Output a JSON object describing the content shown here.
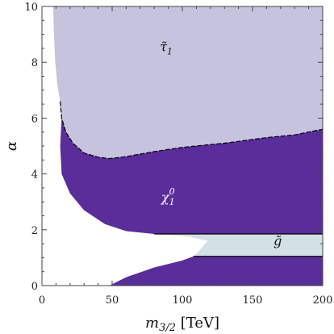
{
  "chart_data": {
    "type": "area",
    "xlabel": "m",
    "xlabel_sub": "3/2",
    "xlabel_unit": " [TeV]",
    "ylabel": "α",
    "xlim": [
      0,
      200
    ],
    "ylim": [
      0,
      10
    ],
    "x_ticks": [
      0,
      50,
      100,
      150,
      200
    ],
    "y_ticks": [
      0,
      2,
      4,
      6,
      8,
      10
    ],
    "colors": {
      "stau": "#c5c3de",
      "neutralino": "#5a2d9b",
      "gluino": "#d3e0e6",
      "excluded": "#ffffff",
      "boundary": "#000000"
    },
    "regions": [
      {
        "id": "stau",
        "label_main": "τ̃",
        "label_sub": "1",
        "label_at": [
          84,
          8.4
        ],
        "boundary": [
          [
            8,
            10
          ],
          [
            8.5,
            9
          ],
          [
            9.5,
            8
          ],
          [
            11,
            7.2
          ],
          [
            13,
            6.6
          ],
          [
            14,
            6.0
          ],
          [
            17,
            5.5
          ],
          [
            22,
            5.1
          ],
          [
            30,
            4.75
          ],
          [
            40,
            4.6
          ],
          [
            48,
            4.55
          ],
          [
            60,
            4.62
          ],
          [
            80,
            4.8
          ],
          [
            100,
            4.95
          ],
          [
            130,
            5.1
          ],
          [
            160,
            5.3
          ],
          [
            180,
            5.4
          ],
          [
            200,
            5.6
          ]
        ]
      },
      {
        "id": "neutralino",
        "label_main": "χ",
        "label_sub": "1",
        "label_sup": "0",
        "label_at": [
          85,
          3.0
        ],
        "boundary": [
          [
            14,
            6.0
          ],
          [
            13,
            5.0
          ],
          [
            14,
            4.0
          ],
          [
            20,
            3.3
          ],
          [
            30,
            2.7
          ],
          [
            45,
            2.2
          ],
          [
            60,
            1.95
          ],
          [
            80,
            1.85
          ],
          [
            200,
            1.85
          ]
        ]
      },
      {
        "id": "gluino",
        "label_main": "g̃",
        "label_at": [
          165,
          1.45
        ],
        "boundary": [
          [
            80,
            1.85
          ],
          [
            105,
            1.75
          ],
          [
            118,
            1.6
          ],
          [
            112,
            1.25
          ],
          [
            108,
            1.05
          ],
          [
            200,
            1.05
          ]
        ]
      },
      {
        "id": "neutralino_low",
        "boundary": [
          [
            48,
            0
          ],
          [
            60,
            0.3
          ],
          [
            80,
            0.65
          ],
          [
            100,
            0.9
          ],
          [
            108,
            1.05
          ],
          [
            200,
            1.05
          ]
        ]
      }
    ]
  }
}
